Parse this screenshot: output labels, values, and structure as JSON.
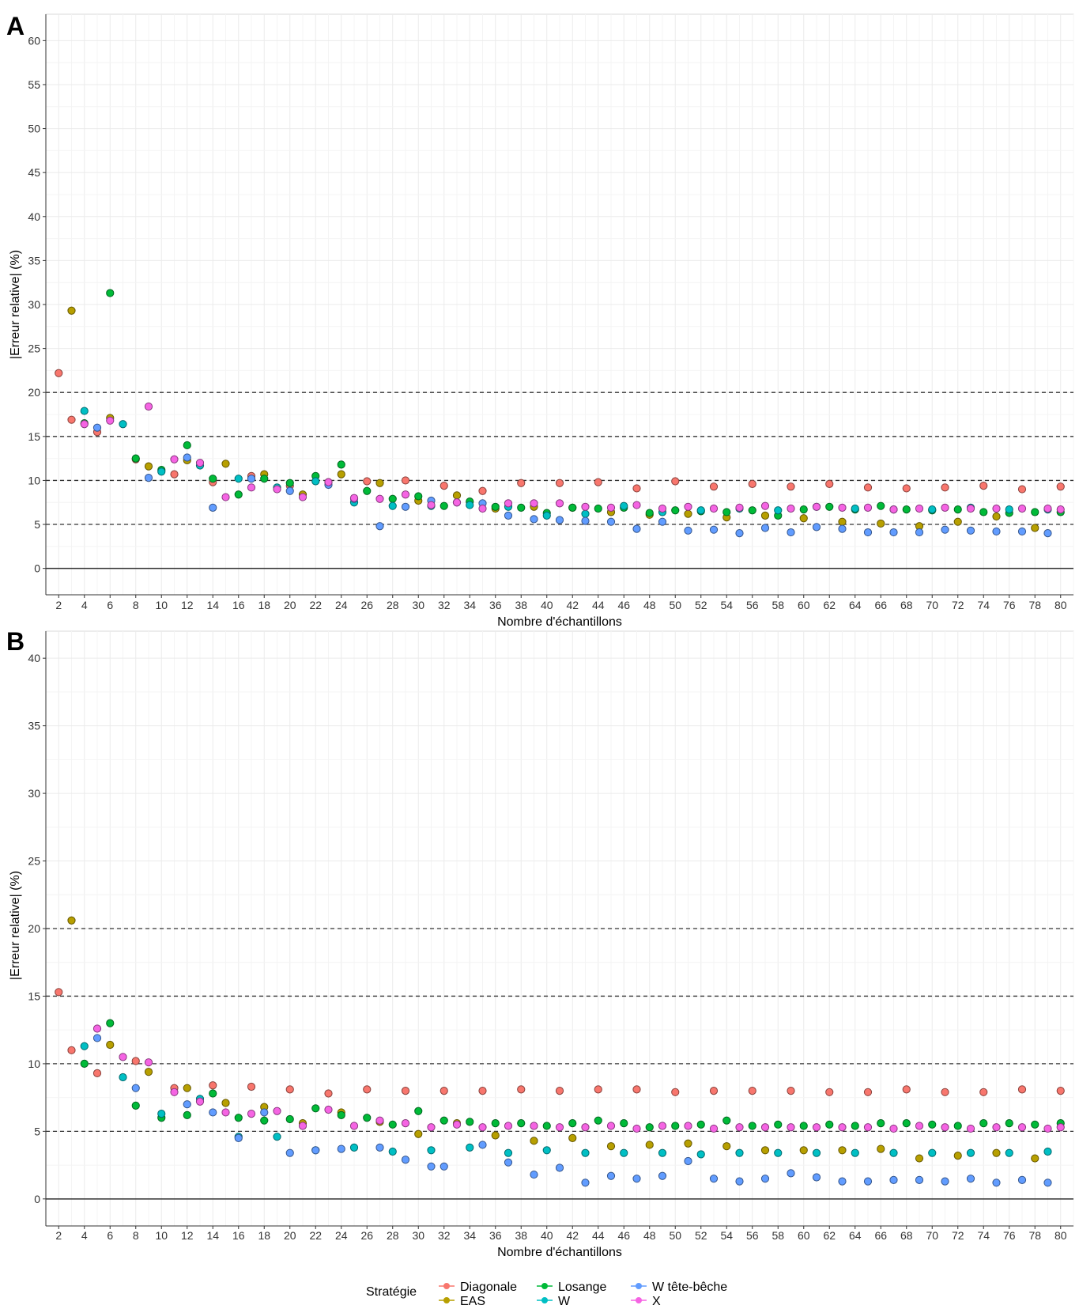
{
  "legend": {
    "title": "Stratégie",
    "entries": [
      {
        "label": "Diagonale",
        "color": "#F8766D"
      },
      {
        "label": "EAS",
        "color": "#B79F00"
      },
      {
        "label": "Losange",
        "color": "#00BA38"
      },
      {
        "label": "W",
        "color": "#00BFC4"
      },
      {
        "label": "W tête-bêche",
        "color": "#619CFF"
      },
      {
        "label": "X",
        "color": "#F564E3"
      }
    ]
  },
  "chart_data": [
    {
      "type": "scatter",
      "panel": "A",
      "xlabel": "Nombre d'échantillons",
      "ylabel": "|Erreur relative| (%)",
      "x_ticks": [
        2,
        4,
        6,
        8,
        10,
        12,
        14,
        16,
        18,
        20,
        22,
        24,
        26,
        28,
        30,
        32,
        34,
        36,
        38,
        40,
        42,
        44,
        46,
        48,
        50,
        52,
        54,
        56,
        58,
        60,
        62,
        64,
        66,
        68,
        70,
        72,
        74,
        76,
        78,
        80
      ],
      "y_ticks": [
        0,
        5,
        10,
        15,
        20,
        25,
        30,
        35,
        40,
        45,
        50,
        55,
        60
      ],
      "ylim": [
        -3,
        63
      ],
      "xlim": [
        1,
        81
      ],
      "reference_lines": [
        5,
        10,
        15,
        20
      ],
      "grid": true,
      "series": [
        {
          "name": "Diagonale",
          "color": "#F8766D",
          "x": [
            2,
            3,
            5,
            8,
            11,
            14,
            17,
            20,
            23,
            26,
            29,
            32,
            35,
            38,
            41,
            44,
            47,
            50,
            53,
            56,
            59,
            62,
            65,
            68,
            71,
            74,
            77,
            80
          ],
          "y": [
            22.2,
            16.9,
            15.5,
            12.4,
            10.7,
            9.8,
            10.5,
            9.4,
            9.8,
            9.9,
            10.0,
            9.4,
            8.8,
            9.7,
            9.7,
            9.8,
            9.1,
            9.9,
            9.3,
            9.6,
            9.3,
            9.6,
            9.2,
            9.1,
            9.2,
            9.4,
            9.0,
            9.3
          ]
        },
        {
          "name": "EAS",
          "color": "#B79F00",
          "x": [
            3,
            6,
            9,
            12,
            15,
            18,
            21,
            24,
            27,
            30,
            33,
            36,
            39,
            42,
            45,
            48,
            51,
            54,
            57,
            60,
            63,
            66,
            69,
            72,
            75,
            78
          ],
          "y": [
            29.3,
            17.1,
            11.6,
            12.3,
            11.9,
            10.7,
            8.4,
            10.7,
            9.7,
            7.7,
            8.3,
            6.8,
            7.0,
            6.9,
            6.4,
            6.1,
            6.2,
            5.8,
            6.0,
            5.7,
            5.3,
            5.1,
            4.8,
            5.3,
            5.9,
            4.6
          ]
        },
        {
          "name": "Losange",
          "color": "#00BA38",
          "x": [
            4,
            6,
            8,
            10,
            12,
            14,
            16,
            18,
            20,
            22,
            24,
            26,
            28,
            30,
            32,
            34,
            36,
            38,
            40,
            42,
            44,
            46,
            48,
            50,
            52,
            54,
            56,
            58,
            60,
            62,
            64,
            66,
            68,
            70,
            72,
            74,
            76,
            78,
            80
          ],
          "y": [
            16.5,
            31.3,
            12.5,
            11.2,
            14.0,
            10.2,
            8.4,
            10.2,
            9.7,
            10.5,
            11.8,
            8.8,
            7.9,
            8.2,
            7.1,
            7.6,
            7.0,
            6.9,
            6.3,
            6.9,
            6.8,
            6.9,
            6.3,
            6.6,
            6.5,
            6.4,
            6.6,
            6.0,
            6.7,
            7.0,
            6.7,
            7.1,
            6.7,
            6.6,
            6.7,
            6.4,
            6.3,
            6.4,
            6.4
          ]
        },
        {
          "name": "W",
          "color": "#00BFC4",
          "x": [
            4,
            7,
            10,
            13,
            16,
            19,
            22,
            25,
            28,
            31,
            34,
            37,
            40,
            43,
            46,
            49,
            52,
            55,
            58,
            61,
            64,
            67,
            70,
            73,
            76,
            79
          ],
          "y": [
            17.9,
            16.4,
            11.0,
            11.7,
            10.2,
            9.2,
            9.9,
            7.5,
            7.1,
            7.1,
            7.2,
            7.0,
            6.0,
            6.2,
            7.1,
            6.4,
            6.6,
            6.8,
            6.6,
            7.0,
            6.8,
            6.7,
            6.7,
            6.9,
            6.7,
            6.7
          ]
        },
        {
          "name": "W tête-bêche",
          "color": "#619CFF",
          "x": [
            5,
            9,
            12,
            14,
            17,
            20,
            23,
            25,
            27,
            29,
            31,
            33,
            35,
            37,
            39,
            41,
            43,
            45,
            47,
            49,
            51,
            53,
            55,
            57,
            59,
            61,
            63,
            65,
            67,
            69,
            71,
            73,
            75,
            77,
            79
          ],
          "y": [
            16.0,
            10.3,
            12.6,
            6.9,
            10.2,
            8.8,
            9.5,
            7.9,
            4.8,
            7.0,
            7.7,
            7.5,
            7.4,
            6.0,
            5.6,
            5.5,
            5.4,
            5.3,
            4.5,
            5.3,
            4.3,
            4.4,
            4.0,
            4.6,
            4.1,
            4.7,
            4.5,
            4.1,
            4.1,
            4.1,
            4.4,
            4.3,
            4.2,
            4.2,
            4.0
          ]
        },
        {
          "name": "X",
          "color": "#F564E3",
          "x": [
            4,
            6,
            9,
            11,
            13,
            15,
            17,
            19,
            21,
            23,
            25,
            27,
            29,
            31,
            33,
            35,
            37,
            39,
            41,
            43,
            45,
            47,
            49,
            51,
            53,
            55,
            57,
            59,
            61,
            63,
            65,
            67,
            69,
            71,
            73,
            75,
            77,
            79,
            80
          ],
          "y": [
            16.4,
            16.8,
            18.4,
            12.4,
            12.0,
            8.1,
            9.2,
            9.0,
            8.1,
            9.8,
            8.0,
            7.9,
            8.4,
            7.2,
            7.5,
            6.8,
            7.4,
            7.4,
            7.4,
            7.0,
            6.9,
            7.2,
            6.8,
            7.0,
            6.8,
            6.9,
            7.1,
            6.8,
            7.0,
            6.9,
            6.9,
            6.7,
            6.8,
            6.9,
            6.8,
            6.8,
            6.8,
            6.8,
            6.7
          ]
        }
      ]
    },
    {
      "type": "scatter",
      "panel": "B",
      "xlabel": "Nombre d'échantillons",
      "ylabel": "|Erreur relative| (%)",
      "x_ticks": [
        2,
        4,
        6,
        8,
        10,
        12,
        14,
        16,
        18,
        20,
        22,
        24,
        26,
        28,
        30,
        32,
        34,
        36,
        38,
        40,
        42,
        44,
        46,
        48,
        50,
        52,
        54,
        56,
        58,
        60,
        62,
        64,
        66,
        68,
        70,
        72,
        74,
        76,
        78,
        80
      ],
      "y_ticks": [
        0,
        5,
        10,
        15,
        20,
        25,
        30,
        35,
        40
      ],
      "ylim": [
        -2,
        42
      ],
      "xlim": [
        1,
        81
      ],
      "reference_lines": [
        5,
        10,
        15,
        20
      ],
      "grid": true,
      "series": [
        {
          "name": "Diagonale",
          "color": "#F8766D",
          "x": [
            2,
            3,
            5,
            8,
            11,
            14,
            17,
            20,
            23,
            26,
            29,
            32,
            35,
            38,
            41,
            44,
            47,
            50,
            53,
            56,
            59,
            62,
            65,
            68,
            71,
            74,
            77,
            80
          ],
          "y": [
            15.3,
            11.0,
            9.3,
            10.2,
            8.2,
            8.4,
            8.3,
            8.1,
            7.8,
            8.1,
            8.0,
            8.0,
            8.0,
            8.1,
            8.0,
            8.1,
            8.1,
            7.9,
            8.0,
            8.0,
            8.0,
            7.9,
            7.9,
            8.1,
            7.9,
            7.9,
            8.1,
            8.0
          ]
        },
        {
          "name": "EAS",
          "color": "#B79F00",
          "x": [
            3,
            6,
            9,
            12,
            15,
            18,
            21,
            24,
            27,
            30,
            33,
            36,
            39,
            42,
            45,
            48,
            51,
            54,
            57,
            60,
            63,
            66,
            69,
            72,
            75,
            78
          ],
          "y": [
            20.6,
            11.4,
            9.4,
            8.2,
            7.1,
            6.8,
            5.6,
            6.4,
            5.7,
            4.8,
            5.6,
            4.7,
            4.3,
            4.5,
            3.9,
            4.0,
            4.1,
            3.9,
            3.6,
            3.6,
            3.6,
            3.7,
            3.0,
            3.2,
            3.4,
            3.0
          ]
        },
        {
          "name": "Losange",
          "color": "#00BA38",
          "x": [
            4,
            6,
            8,
            10,
            12,
            14,
            16,
            18,
            20,
            22,
            24,
            26,
            28,
            30,
            32,
            34,
            36,
            38,
            40,
            42,
            44,
            46,
            48,
            50,
            52,
            54,
            56,
            58,
            60,
            62,
            64,
            66,
            68,
            70,
            72,
            74,
            76,
            78,
            80
          ],
          "y": [
            10.0,
            13.0,
            6.9,
            6.0,
            6.2,
            7.8,
            6.0,
            5.8,
            5.9,
            6.7,
            6.2,
            6.0,
            5.5,
            6.5,
            5.8,
            5.7,
            5.6,
            5.6,
            5.4,
            5.6,
            5.8,
            5.6,
            5.3,
            5.4,
            5.5,
            5.8,
            5.4,
            5.5,
            5.4,
            5.5,
            5.4,
            5.6,
            5.6,
            5.5,
            5.4,
            5.6,
            5.6,
            5.5,
            5.6
          ]
        },
        {
          "name": "W",
          "color": "#00BFC4",
          "x": [
            4,
            7,
            10,
            13,
            16,
            19,
            22,
            25,
            28,
            31,
            34,
            37,
            40,
            43,
            46,
            49,
            52,
            55,
            58,
            61,
            64,
            67,
            70,
            73,
            76,
            79
          ],
          "y": [
            11.3,
            9.0,
            6.3,
            7.4,
            4.6,
            4.6,
            3.6,
            3.8,
            3.5,
            3.6,
            3.8,
            3.4,
            3.6,
            3.4,
            3.4,
            3.4,
            3.3,
            3.4,
            3.4,
            3.4,
            3.4,
            3.4,
            3.4,
            3.4,
            3.4,
            3.5
          ]
        },
        {
          "name": "W tête-bêche",
          "color": "#619CFF",
          "x": [
            5,
            8,
            12,
            14,
            16,
            18,
            20,
            22,
            24,
            27,
            29,
            31,
            32,
            35,
            37,
            39,
            41,
            43,
            45,
            47,
            49,
            51,
            53,
            55,
            57,
            59,
            61,
            63,
            65,
            67,
            69,
            71,
            73,
            75,
            77,
            79
          ],
          "y": [
            11.9,
            8.2,
            7.0,
            6.4,
            4.5,
            6.4,
            3.4,
            3.6,
            3.7,
            3.8,
            2.9,
            2.4,
            2.4,
            4.0,
            2.7,
            1.8,
            2.3,
            1.2,
            1.7,
            1.5,
            1.7,
            2.8,
            1.5,
            1.3,
            1.5,
            1.9,
            1.6,
            1.3,
            1.3,
            1.4,
            1.4,
            1.3,
            1.5,
            1.2,
            1.4,
            1.2
          ]
        },
        {
          "name": "X",
          "color": "#F564E3",
          "x": [
            5,
            7,
            9,
            11,
            13,
            15,
            17,
            19,
            21,
            23,
            25,
            27,
            29,
            31,
            33,
            35,
            37,
            39,
            41,
            43,
            45,
            47,
            49,
            51,
            53,
            55,
            57,
            59,
            61,
            63,
            65,
            67,
            69,
            71,
            73,
            75,
            77,
            79,
            80
          ],
          "y": [
            12.6,
            10.5,
            10.1,
            7.9,
            7.2,
            6.4,
            6.3,
            6.5,
            5.4,
            6.6,
            5.4,
            5.8,
            5.6,
            5.3,
            5.5,
            5.3,
            5.4,
            5.4,
            5.3,
            5.3,
            5.4,
            5.2,
            5.4,
            5.4,
            5.2,
            5.3,
            5.3,
            5.3,
            5.3,
            5.3,
            5.3,
            5.2,
            5.4,
            5.3,
            5.2,
            5.3,
            5.3,
            5.2,
            5.3
          ]
        }
      ]
    }
  ]
}
